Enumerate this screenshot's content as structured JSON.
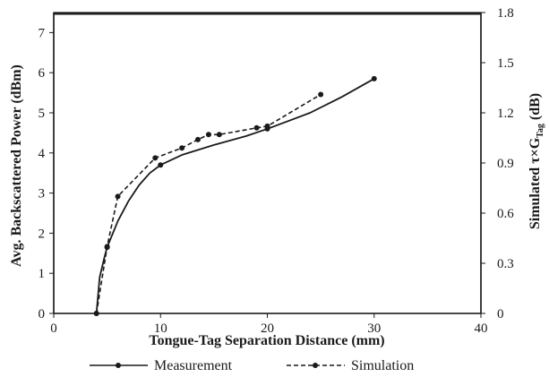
{
  "chart_data": {
    "type": "line",
    "xlabel": "Tongue-Tag Separation Distance (mm)",
    "ylabel_left": "Avg. Backscattered Power (dBm)",
    "ylabel_right": "Simulated τ×G",
    "ylabel_right_sub": "Tag",
    "ylabel_right_unit": " (dB)",
    "xlim": [
      0,
      40
    ],
    "ylim_left": [
      0,
      7.5
    ],
    "ylim_right": [
      0,
      1.8
    ],
    "xticks": [
      "0",
      "10",
      "20",
      "30",
      "40"
    ],
    "yticks_left": [
      "0",
      "1",
      "2",
      "3",
      "4",
      "5",
      "6",
      "7"
    ],
    "yticks_right": [
      "0",
      "0.3",
      "0.6",
      "0.9",
      "1.2",
      "1.5",
      "1.8"
    ],
    "grid": false,
    "legend_position": "bottom",
    "series": [
      {
        "name": "Measurement",
        "axis": "left",
        "style": "solid",
        "marker_points": [
          {
            "x": 4,
            "y": 0.0
          },
          {
            "x": 5,
            "y": 1.65
          },
          {
            "x": 10,
            "y": 3.7
          },
          {
            "x": 20,
            "y": 4.6
          },
          {
            "x": 30,
            "y": 5.85
          }
        ],
        "curve": [
          {
            "x": 4,
            "y": 0.0
          },
          {
            "x": 4.3,
            "y": 0.9
          },
          {
            "x": 4.7,
            "y": 1.35
          },
          {
            "x": 5,
            "y": 1.65
          },
          {
            "x": 6,
            "y": 2.3
          },
          {
            "x": 7,
            "y": 2.8
          },
          {
            "x": 8,
            "y": 3.2
          },
          {
            "x": 9,
            "y": 3.5
          },
          {
            "x": 10,
            "y": 3.7
          },
          {
            "x": 12,
            "y": 3.95
          },
          {
            "x": 15,
            "y": 4.2
          },
          {
            "x": 18,
            "y": 4.42
          },
          {
            "x": 20,
            "y": 4.6
          },
          {
            "x": 24,
            "y": 5.0
          },
          {
            "x": 27,
            "y": 5.4
          },
          {
            "x": 30,
            "y": 5.85
          }
        ]
      },
      {
        "name": "Simulation",
        "axis": "right",
        "style": "dashed",
        "points": [
          {
            "x": 4,
            "y": 0.0
          },
          {
            "x": 5,
            "y": 0.4
          },
          {
            "x": 6,
            "y": 0.7
          },
          {
            "x": 9.5,
            "y": 0.93
          },
          {
            "x": 12,
            "y": 0.99
          },
          {
            "x": 13.5,
            "y": 1.04
          },
          {
            "x": 14.5,
            "y": 1.07
          },
          {
            "x": 15.5,
            "y": 1.07
          },
          {
            "x": 19,
            "y": 1.11
          },
          {
            "x": 20,
            "y": 1.12
          },
          {
            "x": 25,
            "y": 1.31
          }
        ]
      }
    ]
  }
}
